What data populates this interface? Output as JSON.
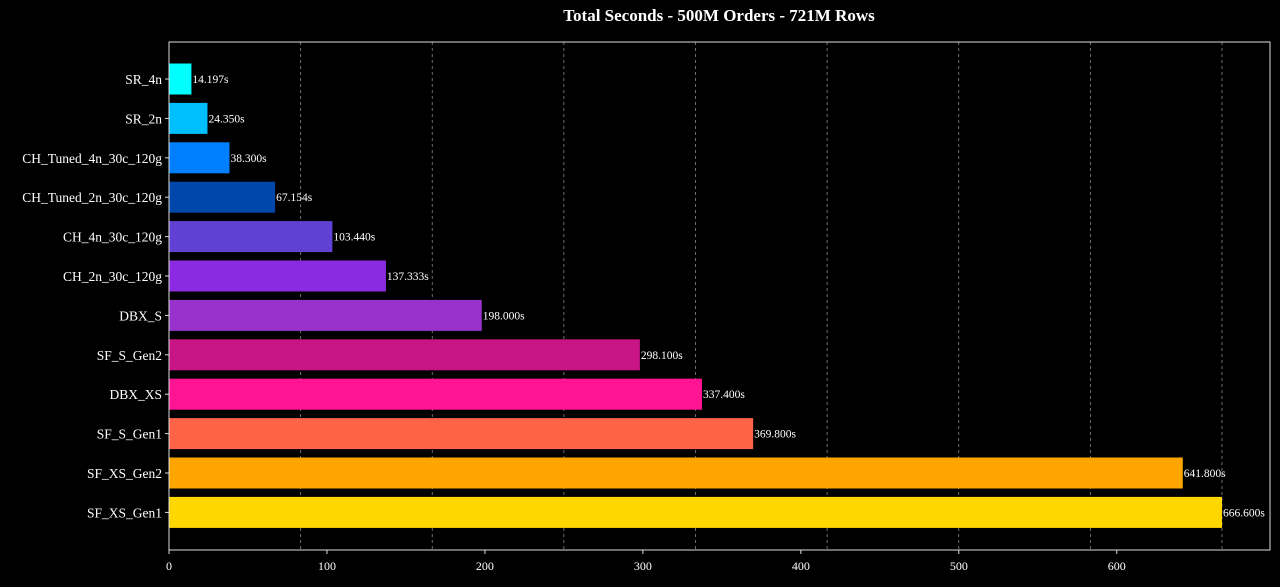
{
  "chart_data": {
    "type": "bar",
    "orientation": "horizontal",
    "title": "Total Seconds - 500M Orders - 721M Rows",
    "xlabel": "",
    "ylabel": "",
    "xlim": [
      0,
      697
    ],
    "x_ticks": [
      0,
      100,
      200,
      300,
      400,
      500,
      600
    ],
    "grid": "vertical dashed lines at max/8 intervals",
    "background": "#000000",
    "categories": [
      "SR_4n",
      "SR_2n",
      "CH_Tuned_4n_30c_120g",
      "CH_Tuned_2n_30c_120g",
      "CH_4n_30c_120g",
      "CH_2n_30c_120g",
      "DBX_S",
      "SF_S_Gen2",
      "DBX_XS",
      "SF_S_Gen1",
      "SF_XS_Gen2",
      "SF_XS_Gen1"
    ],
    "values": [
      14.197,
      24.35,
      38.3,
      67.154,
      103.44,
      137.333,
      198.0,
      298.1,
      337.4,
      369.8,
      641.8,
      666.6
    ],
    "data_labels": [
      "14.197s",
      "24.350s",
      "38.300s",
      "67.154s",
      "103.440s",
      "137.333s",
      "198.000s",
      "298.100s",
      "337.400s",
      "369.800s",
      "641.800s",
      "666.600s"
    ],
    "colors": [
      "#00FFFF",
      "#00BFFF",
      "#0080FF",
      "#0047AB",
      "#6041D4",
      "#8A2BE2",
      "#9932CC",
      "#C71585",
      "#FF1493",
      "#FF6347",
      "#FFA500",
      "#FFD700"
    ]
  }
}
